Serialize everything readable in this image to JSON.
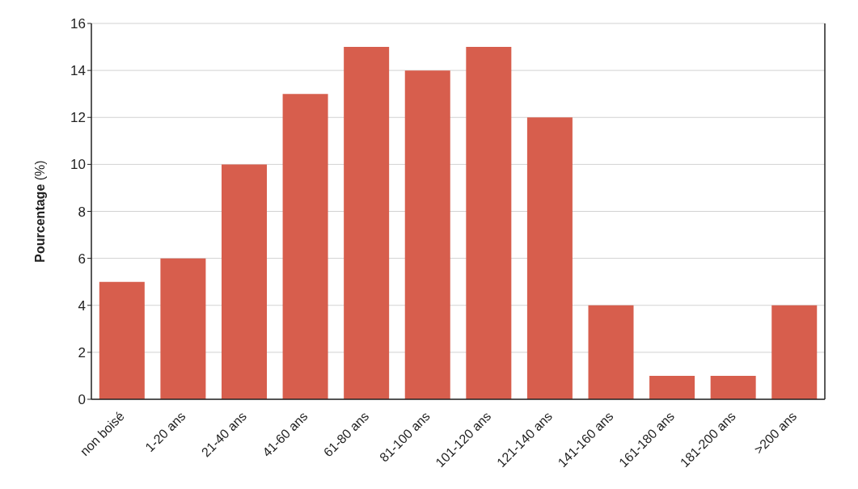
{
  "chart_data": {
    "type": "bar",
    "ylabel": "Pourcentage (%)",
    "categories": [
      "non boisé",
      "1-20 ans",
      "21-40 ans",
      "41-60 ans",
      "61-80 ans",
      "81-100 ans",
      "101-120 ans",
      "121-140 ans",
      "141-160 ans",
      "161-180 ans",
      "181-200 ans",
      ">200 ans"
    ],
    "values": [
      5,
      6,
      10,
      13,
      15,
      14,
      15,
      12,
      4,
      1,
      1,
      4
    ],
    "color": "#d75e4d",
    "ylim": [
      0,
      16
    ],
    "yticks": [
      0,
      2,
      4,
      6,
      8,
      10,
      12,
      14,
      16
    ],
    "grid": "y"
  }
}
